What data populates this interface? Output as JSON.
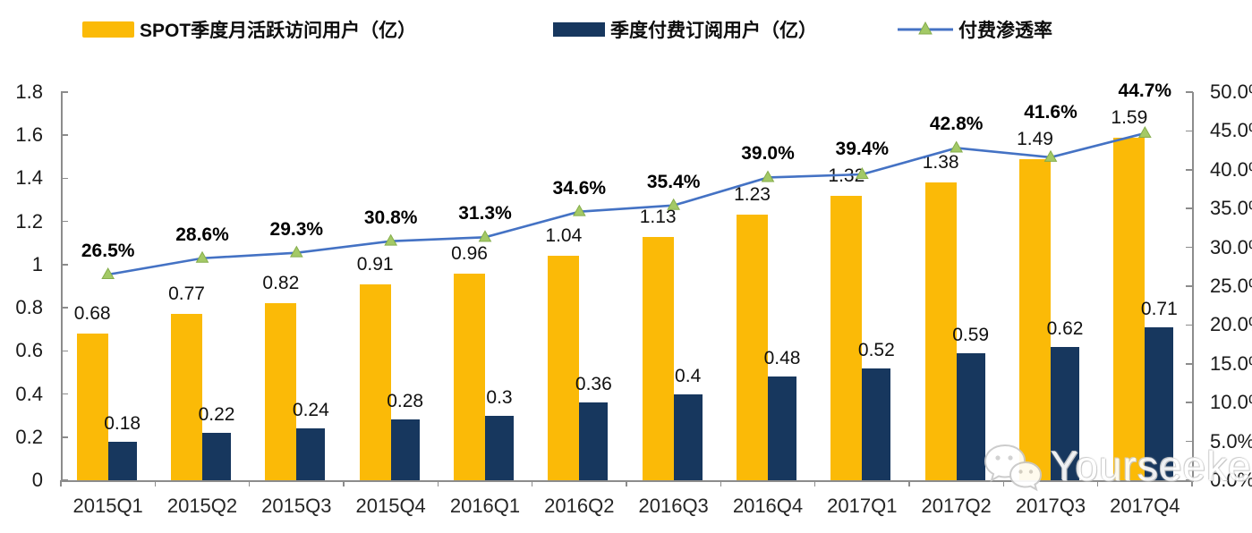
{
  "chart_data": {
    "type": "combo",
    "categories": [
      "2015Q1",
      "2015Q2",
      "2015Q3",
      "2015Q4",
      "2016Q1",
      "2016Q2",
      "2016Q3",
      "2016Q4",
      "2017Q1",
      "2017Q2",
      "2017Q3",
      "2017Q4"
    ],
    "series": [
      {
        "name": "SPOT季度月活跃访问用户（亿）",
        "type": "bar",
        "axis": "left",
        "color": "#FBBA07",
        "values": [
          0.68,
          0.77,
          0.82,
          0.91,
          0.96,
          1.04,
          1.13,
          1.23,
          1.32,
          1.38,
          1.49,
          1.59
        ],
        "labels": [
          "0.68",
          "0.77",
          "0.82",
          "0.91",
          "0.96",
          "1.04",
          "1.13",
          "1.23",
          "1.32",
          "1.38",
          "1.49",
          "1.59"
        ]
      },
      {
        "name": "季度付费订阅用户（亿）",
        "type": "bar",
        "axis": "left",
        "color": "#17375E",
        "values": [
          0.18,
          0.22,
          0.24,
          0.28,
          0.3,
          0.36,
          0.4,
          0.48,
          0.52,
          0.59,
          0.62,
          0.71
        ],
        "labels": [
          "0.18",
          "0.22",
          "0.24",
          "0.28",
          "0.3",
          "0.36",
          "0.4",
          "0.48",
          "0.52",
          "0.59",
          "0.62",
          "0.71"
        ]
      },
      {
        "name": "付费渗透率",
        "type": "line",
        "axis": "right",
        "color": "#4472C4",
        "marker": "triangle",
        "marker_color": "#A3C966",
        "marker_edge_color": "#85AD4C",
        "values": [
          26.5,
          28.6,
          29.3,
          30.8,
          31.3,
          34.6,
          35.4,
          39.0,
          39.4,
          42.8,
          41.6,
          44.7
        ],
        "labels": [
          "26.5%",
          "28.6%",
          "29.3%",
          "30.8%",
          "31.3%",
          "34.6%",
          "35.4%",
          "39.0%",
          "39.4%",
          "42.8%",
          "41.6%",
          "44.7%"
        ]
      }
    ],
    "left_axis": {
      "min": 0,
      "max": 1.8,
      "step": 0.2,
      "tick_labels": [
        "1.8",
        "1.6",
        "1.4",
        "1.2",
        "1",
        "0.8",
        "0.6",
        "0.4",
        "0.2",
        "0"
      ]
    },
    "right_axis": {
      "min": 0,
      "max": 50,
      "step": 5,
      "tick_labels": [
        "50.0%",
        "45.0%",
        "40.0%",
        "35.0%",
        "30.0%",
        "25.0%",
        "20.0%",
        "15.0%",
        "10.0%",
        "5.0%",
        "0.0%"
      ]
    },
    "grid": false,
    "legend_position": "top",
    "axis_color": "#8C8C8C"
  },
  "watermark": {
    "text": "Yourseeker",
    "icon": "wechat-icon"
  }
}
